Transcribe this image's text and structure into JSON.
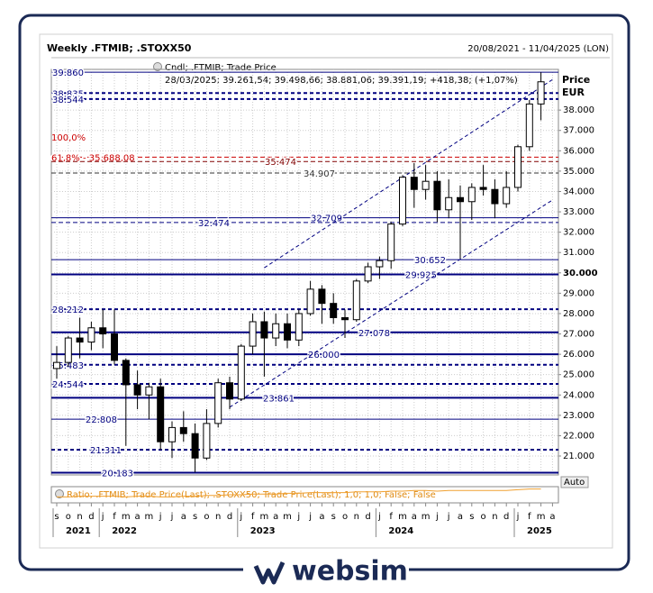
{
  "chart_data": {
    "type": "candlestick",
    "title": "Weekly .FTMIB; .STOXX50",
    "subtitle": "20/08/2021 - 11/04/2025 (LON)",
    "legend": "Cndl; .FTMIB; Trade Price",
    "last_quote": "28/03/2025; 39.261,54; 39.498,66; 38.881,06; 39.391,19; +418,38; (+1,07%)",
    "y_label": "Price",
    "y_unit": "EUR",
    "scale_mode": "Auto",
    "annotations": [
      "100,0%"
    ],
    "x": [
      "2021-09",
      "2021-10",
      "2021-11",
      "2021-12",
      "2022-01",
      "2022-02",
      "2022-03",
      "2022-04",
      "2022-05",
      "2022-06",
      "2022-07",
      "2022-08",
      "2022-09",
      "2022-10",
      "2022-11",
      "2022-12",
      "2023-01",
      "2023-02",
      "2023-03",
      "2023-04",
      "2023-05",
      "2023-06",
      "2023-07",
      "2023-08",
      "2023-09",
      "2023-10",
      "2023-11",
      "2023-12",
      "2024-01",
      "2024-02",
      "2024-03",
      "2024-04",
      "2024-05",
      "2024-06",
      "2024-07",
      "2024-08",
      "2024-09",
      "2024-10",
      "2024-11",
      "2024-12",
      "2025-01",
      "2025-02",
      "2025-03"
    ],
    "open": [
      25300,
      25600,
      26800,
      26600,
      27300,
      27000,
      25700,
      24500,
      24000,
      24400,
      21700,
      22400,
      22100,
      20900,
      22600,
      24600,
      23800,
      26400,
      27600,
      26800,
      27500,
      26700,
      28000,
      29200,
      28500,
      27800,
      27700,
      29600,
      30300,
      30600,
      32400,
      34700,
      34100,
      34500,
      33100,
      33700,
      33500,
      34200,
      34100,
      33400,
      34200,
      36200,
      38300
    ],
    "high": [
      26400,
      26900,
      27800,
      27600,
      28200,
      28200,
      25800,
      25200,
      24600,
      24800,
      22700,
      23200,
      22600,
      23300,
      24800,
      24900,
      26500,
      28000,
      28100,
      28000,
      28000,
      28200,
      29600,
      29400,
      29000,
      28200,
      29700,
      30500,
      30800,
      32500,
      34800,
      35400,
      35300,
      35000,
      34600,
      34300,
      34400,
      35300,
      34600,
      35000,
      36300,
      38500,
      39860
    ],
    "low": [
      24800,
      25400,
      25800,
      26200,
      26300,
      25500,
      21500,
      23300,
      22800,
      21300,
      20900,
      21700,
      20200,
      20800,
      22400,
      23300,
      23700,
      26000,
      24900,
      26400,
      26300,
      26400,
      27900,
      27500,
      27500,
      26800,
      27600,
      29500,
      29700,
      30200,
      32300,
      33200,
      33600,
      32500,
      32700,
      30700,
      32600,
      33800,
      32700,
      33200,
      34000,
      36000,
      37500
    ],
    "close": [
      25600,
      26800,
      26600,
      27300,
      27000,
      25700,
      24500,
      24000,
      24400,
      21700,
      22400,
      22100,
      20900,
      22600,
      24600,
      23800,
      26400,
      27600,
      26800,
      27500,
      26700,
      28000,
      29200,
      28500,
      27800,
      27700,
      29600,
      30300,
      30600,
      32400,
      34700,
      34100,
      34500,
      33100,
      33700,
      33500,
      34200,
      34100,
      33400,
      34200,
      36200,
      38300,
      39391
    ],
    "ylim": [
      20070,
      40000
    ],
    "yticks": [
      {
        "value": 21000,
        "label": "21.000"
      },
      {
        "value": 22000,
        "label": "22.000"
      },
      {
        "value": 23000,
        "label": "23.000"
      },
      {
        "value": 24000,
        "label": "24.000"
      },
      {
        "value": 25000,
        "label": "25.000"
      },
      {
        "value": 26000,
        "label": "26.000"
      },
      {
        "value": 27000,
        "label": "27.000"
      },
      {
        "value": 28000,
        "label": "28.000"
      },
      {
        "value": 29000,
        "label": "29.000"
      },
      {
        "value": 30000,
        "label": "30.000"
      },
      {
        "value": 31000,
        "label": "31.000"
      },
      {
        "value": 32000,
        "label": "32.000"
      },
      {
        "value": 33000,
        "label": "33.000"
      },
      {
        "value": 34000,
        "label": "34.000"
      },
      {
        "value": 35000,
        "label": "35.000"
      },
      {
        "value": 36000,
        "label": "36.000"
      },
      {
        "value": 37000,
        "label": "37.000"
      },
      {
        "value": 38000,
        "label": "38.000"
      }
    ],
    "bold_tick": 30000,
    "xticks": [
      {
        "value": "2021-09",
        "label": "s"
      },
      {
        "value": "2021-10",
        "label": "o"
      },
      {
        "value": "2021-11",
        "label": "n"
      },
      {
        "value": "2021-12",
        "label": "d"
      },
      {
        "value": "2022-01",
        "label": "j"
      },
      {
        "value": "2022-02",
        "label": "f"
      },
      {
        "value": "2022-03",
        "label": "m"
      },
      {
        "value": "2022-04",
        "label": "a"
      },
      {
        "value": "2022-05",
        "label": "m"
      },
      {
        "value": "2022-06",
        "label": "j"
      },
      {
        "value": "2022-07",
        "label": "j"
      },
      {
        "value": "2022-08",
        "label": "a"
      },
      {
        "value": "2022-09",
        "label": "s"
      },
      {
        "value": "2022-10",
        "label": "o"
      },
      {
        "value": "2022-11",
        "label": "n"
      },
      {
        "value": "2022-12",
        "label": "d"
      },
      {
        "value": "2023-01",
        "label": "j"
      },
      {
        "value": "2023-02",
        "label": "f"
      },
      {
        "value": "2023-03",
        "label": "m"
      },
      {
        "value": "2023-04",
        "label": "a"
      },
      {
        "value": "2023-05",
        "label": "m"
      },
      {
        "value": "2023-06",
        "label": "j"
      },
      {
        "value": "2023-07",
        "label": "j"
      },
      {
        "value": "2023-08",
        "label": "a"
      },
      {
        "value": "2023-09",
        "label": "s"
      },
      {
        "value": "2023-10",
        "label": "o"
      },
      {
        "value": "2023-11",
        "label": "n"
      },
      {
        "value": "2023-12",
        "label": "d"
      },
      {
        "value": "2024-01",
        "label": "j"
      },
      {
        "value": "2024-02",
        "label": "f"
      },
      {
        "value": "2024-03",
        "label": "m"
      },
      {
        "value": "2024-04",
        "label": "a"
      },
      {
        "value": "2024-05",
        "label": "m"
      },
      {
        "value": "2024-06",
        "label": "j"
      },
      {
        "value": "2024-07",
        "label": "j"
      },
      {
        "value": "2024-08",
        "label": "a"
      },
      {
        "value": "2024-09",
        "label": "s"
      },
      {
        "value": "2024-10",
        "label": "o"
      },
      {
        "value": "2024-11",
        "label": "n"
      },
      {
        "value": "2024-12",
        "label": "d"
      },
      {
        "value": "2025-01",
        "label": "j"
      },
      {
        "value": "2025-02",
        "label": "f"
      },
      {
        "value": "2025-03",
        "label": "m"
      },
      {
        "value": "2025-04",
        "label": "a"
      }
    ],
    "year_ticks": [
      {
        "value": "2021-09",
        "label": "2021"
      },
      {
        "value": "2022-01",
        "label": "2022"
      },
      {
        "value": "2023-01",
        "label": "2023"
      },
      {
        "value": "2024-01",
        "label": "2024"
      },
      {
        "value": "2025-01",
        "label": "2025"
      }
    ],
    "grid": true,
    "levels": [
      {
        "value": 39860,
        "label": "39.860",
        "line": "solid",
        "color": "#000080"
      },
      {
        "value": 38835,
        "label": "38.835",
        "line": "dashed-bold",
        "color": "#000080"
      },
      {
        "value": 38544,
        "label": "38.544",
        "line": "dashed-bold",
        "color": "#000080"
      },
      {
        "value": 35688,
        "label": "61,8% - 35.688,08",
        "line": "dashed",
        "color": "#cc0000"
      },
      {
        "value": 35474,
        "label": "35.474",
        "line": "dashed",
        "color": "#800000"
      },
      {
        "value": 34907,
        "label": "34.907",
        "line": "dashed",
        "color": "#333333"
      },
      {
        "value": 32709,
        "label": "32.709",
        "line": "solid",
        "color": "#000080"
      },
      {
        "value": 32474,
        "label": "32.474",
        "line": "dashed",
        "color": "#000080"
      },
      {
        "value": 30652,
        "label": "30.652",
        "line": "solid",
        "color": "#000080"
      },
      {
        "value": 29925,
        "label": "29.925",
        "line": "solid-bold",
        "color": "#000080"
      },
      {
        "value": 28212,
        "label": "28.212",
        "line": "dashed-bold",
        "color": "#000080"
      },
      {
        "value": 27078,
        "label": "27.078",
        "line": "solid-bold",
        "color": "#000080"
      },
      {
        "value": 26000,
        "label": "26.000",
        "line": "solid-bold",
        "color": "#000080"
      },
      {
        "value": 25483,
        "label": "25.483",
        "line": "dashed-bold",
        "color": "#000080"
      },
      {
        "value": 24544,
        "label": "24.544",
        "line": "dashed-bold",
        "color": "#000080"
      },
      {
        "value": 23861,
        "label": "23.861",
        "line": "solid-bold",
        "color": "#000080"
      },
      {
        "value": 22808,
        "label": "22.808",
        "line": "solid",
        "color": "#000080"
      },
      {
        "value": 21311,
        "label": "21.311",
        "line": "dashed-bold",
        "color": "#000080"
      },
      {
        "value": 20183,
        "label": "20.183",
        "line": "solid-bold",
        "color": "#000080"
      }
    ],
    "trendlines": [
      {
        "x": [
          "2023-03",
          "2025-04"
        ],
        "values": [
          30250,
          39500
        ],
        "color": "#000080"
      },
      {
        "x": [
          "2022-12",
          "2025-04"
        ],
        "values": [
          23400,
          33580
        ],
        "color": "#000080"
      }
    ],
    "ratio": {
      "name": "Ratio; .FTMIB; Trade Price(Last); .STOXX50; Trade Price(Last); 1,0; 1,0; False; False",
      "color": "#f0a030",
      "values": [
        6.2,
        6.2,
        6.3,
        6.3,
        6.3,
        6.3,
        6.2,
        6.3,
        6.3,
        6.2,
        6.2,
        6.3,
        6.3,
        6.4,
        6.4,
        6.5,
        6.5,
        6.6,
        6.6,
        6.6,
        6.7,
        6.7,
        6.8,
        6.8,
        6.8,
        6.8,
        6.9,
        6.9,
        6.9,
        7.0,
        7.0,
        7.1,
        7.1,
        7.0,
        7.1,
        7.1,
        7.1,
        7.1,
        7.1,
        7.1,
        7.2,
        7.3,
        7.3
      ],
      "ylim": [
        5.5,
        7.5
      ]
    },
    "brand": "websim"
  }
}
